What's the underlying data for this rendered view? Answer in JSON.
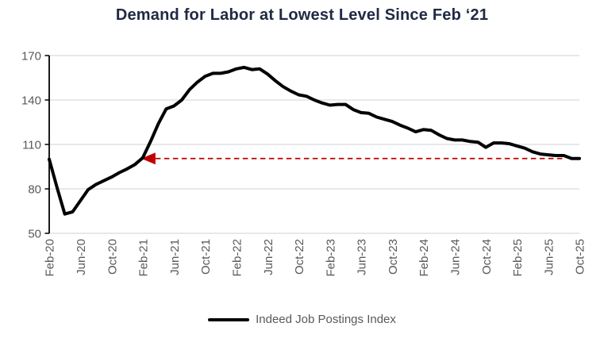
{
  "colors": {
    "title": "#202A44",
    "axis_text": "#595959",
    "gridline": "#D9D9D9",
    "axis_line": "#000000",
    "background": "#FFFFFF"
  },
  "chart_data": {
    "type": "line",
    "title": "Demand for Labor at Lowest Level Since Feb ‘21",
    "categories": [
      "Feb-20",
      "Mar-20",
      "Apr-20",
      "May-20",
      "Jun-20",
      "Jul-20",
      "Aug-20",
      "Sep-20",
      "Oct-20",
      "Nov-20",
      "Dec-20",
      "Jan-21",
      "Feb-21",
      "Mar-21",
      "Apr-21",
      "May-21",
      "Jun-21",
      "Jul-21",
      "Aug-21",
      "Sep-21",
      "Oct-21",
      "Nov-21",
      "Dec-21",
      "Jan-22",
      "Feb-22",
      "Mar-22",
      "Apr-22",
      "May-22",
      "Jun-22",
      "Jul-22",
      "Aug-22",
      "Sep-22",
      "Oct-22",
      "Nov-22",
      "Dec-22",
      "Jan-23",
      "Feb-23",
      "Mar-23",
      "Apr-23",
      "May-23",
      "Jun-23",
      "Jul-23",
      "Aug-23",
      "Sep-23",
      "Oct-23",
      "Nov-23",
      "Dec-23",
      "Jan-24",
      "Feb-24",
      "Mar-24",
      "Apr-24",
      "May-24",
      "Jun-24",
      "Jul-24",
      "Aug-24",
      "Sep-24",
      "Oct-24",
      "Nov-24",
      "Dec-24",
      "Jan-25",
      "Feb-25",
      "Mar-25",
      "Apr-25",
      "May-25",
      "Jun-25",
      "Jul-25",
      "Aug-25",
      "Sep-25",
      "Oct-25"
    ],
    "series": [
      {
        "name": "Indeed Job Postings Index",
        "color": "#000000",
        "values": [
          100,
          81,
          63,
          64.5,
          72,
          79.5,
          83,
          85.5,
          88,
          91,
          93.5,
          96.5,
          101,
          112,
          124,
          134,
          136,
          140,
          147,
          152,
          156,
          158,
          158,
          159,
          161,
          162,
          160.5,
          161,
          157.5,
          153,
          149,
          146,
          143.5,
          142.5,
          140,
          138,
          136.5,
          137,
          137,
          133.5,
          131.5,
          131,
          128.5,
          127,
          125.5,
          123,
          121,
          118.5,
          120,
          119.5,
          116.5,
          114,
          113,
          113,
          112,
          111.5,
          108,
          111,
          111,
          110.5,
          109,
          107.5,
          105,
          103.5,
          103,
          102.5,
          102.5,
          100.5,
          100.5
        ]
      }
    ],
    "ylim": [
      50,
      170
    ],
    "y_ticks": [
      170,
      140,
      110,
      80,
      50
    ],
    "x_tick_every": 4,
    "grid": true,
    "legend_position": "bottom",
    "annotation": {
      "type": "dashed_line_with_left_arrow",
      "y_value": 100.5,
      "from_category": "Feb-21",
      "to_category": "Oct-25",
      "color": "#C00000"
    }
  }
}
